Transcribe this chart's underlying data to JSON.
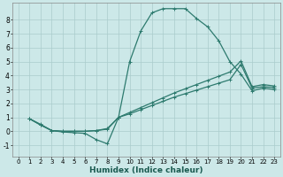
{
  "xlabel": "Humidex (Indice chaleur)",
  "bg_color": "#cce8e8",
  "line_color": "#2d7a6e",
  "grid_color": "#aacccc",
  "xlim": [
    -0.5,
    23.5
  ],
  "ylim": [
    -1.8,
    9.2
  ],
  "xticks": [
    0,
    1,
    2,
    3,
    4,
    5,
    6,
    7,
    8,
    9,
    10,
    11,
    12,
    13,
    14,
    15,
    16,
    17,
    18,
    19,
    20,
    21,
    22,
    23
  ],
  "yticks": [
    -1,
    0,
    1,
    2,
    3,
    4,
    5,
    6,
    7,
    8
  ],
  "curve1_x": [
    1,
    2,
    3,
    4,
    5,
    6,
    7,
    8,
    9,
    10,
    11,
    12,
    13,
    14,
    15,
    16,
    17,
    18,
    19,
    20,
    21,
    22,
    23
  ],
  "curve1_y": [
    0.9,
    0.5,
    0.05,
    -0.05,
    -0.1,
    -0.15,
    -0.6,
    -0.9,
    1.0,
    5.0,
    7.2,
    8.5,
    8.8,
    8.8,
    8.8,
    8.1,
    7.5,
    6.5,
    5.0,
    4.1,
    2.9,
    3.1,
    3.0
  ],
  "curve2_x": [
    1,
    2,
    3,
    4,
    5,
    6,
    7,
    8,
    9,
    10,
    11,
    12,
    13,
    14,
    15,
    16,
    17,
    18,
    19,
    20,
    21,
    22,
    23
  ],
  "curve2_y": [
    0.9,
    0.45,
    0.05,
    0.0,
    0.0,
    0.0,
    0.05,
    0.15,
    1.0,
    1.25,
    1.55,
    1.85,
    2.15,
    2.45,
    2.7,
    2.95,
    3.2,
    3.45,
    3.7,
    4.8,
    3.1,
    3.2,
    3.15
  ],
  "curve3_x": [
    1,
    2,
    3,
    4,
    5,
    6,
    7,
    8,
    9,
    10,
    11,
    12,
    13,
    14,
    15,
    16,
    17,
    18,
    19,
    20,
    21,
    22,
    23
  ],
  "curve3_y": [
    0.9,
    0.45,
    0.05,
    0.0,
    0.0,
    0.0,
    0.05,
    0.2,
    1.0,
    1.35,
    1.7,
    2.05,
    2.4,
    2.75,
    3.05,
    3.35,
    3.65,
    3.95,
    4.25,
    5.05,
    3.2,
    3.35,
    3.25
  ]
}
